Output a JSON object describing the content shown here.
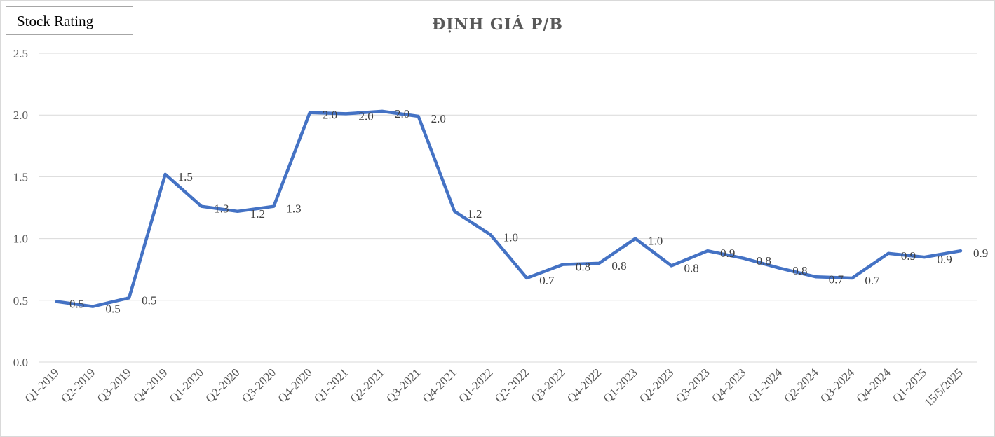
{
  "badge": {
    "label": "Stock Rating"
  },
  "chart_data": {
    "type": "line",
    "title": "ĐỊNH GIÁ P/B",
    "xlabel": "",
    "ylabel": "",
    "ylim": [
      0,
      2.5
    ],
    "yticks": [
      "0.0",
      "0.5",
      "1.0",
      "1.5",
      "2.0",
      "2.5"
    ],
    "grid": true,
    "legend": "none",
    "line_color": "#4472c4",
    "categories": [
      "Q1-2019",
      "Q2-2019",
      "Q3-2019",
      "Q4-2019",
      "Q1-2020",
      "Q2-2020",
      "Q3-2020",
      "Q4-2020",
      "Q1-2021",
      "Q2-2021",
      "Q3-2021",
      "Q4-2021",
      "Q1-2022",
      "Q2-2022",
      "Q3-2022",
      "Q4-2022",
      "Q1-2023",
      "Q2-2023",
      "Q3-2023",
      "Q4-2023",
      "Q1-2024",
      "Q2-2024",
      "Q3-2024",
      "Q4-2024",
      "Q1-2025",
      "15/5/2025"
    ],
    "values": [
      0.49,
      0.45,
      0.52,
      1.52,
      1.26,
      1.22,
      1.26,
      2.02,
      2.01,
      2.03,
      1.99,
      1.22,
      1.03,
      0.68,
      0.79,
      0.8,
      1.0,
      0.78,
      0.9,
      0.84,
      0.76,
      0.69,
      0.68,
      0.88,
      0.85,
      0.9
    ],
    "data_labels": [
      "0.5",
      "0.5",
      "0.5",
      "1.5",
      "1.3",
      "1.2",
      "1.3",
      "2.0",
      "2.0",
      "2.0",
      "2.0",
      "1.2",
      "1.0",
      "0.7",
      "0.8",
      "0.8",
      "1.0",
      "0.8",
      "0.9",
      "0.8",
      "0.8",
      "0.7",
      "0.7",
      "0.9",
      "0.9",
      "0.9"
    ]
  }
}
